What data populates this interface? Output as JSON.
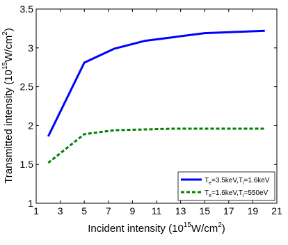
{
  "chart_data": {
    "type": "line",
    "xlabel": {
      "pre": "Incident intensity (10",
      "sup": "15",
      "mid": "W/cm",
      "sup2": "2",
      "post": ")"
    },
    "ylabel": {
      "pre": "Transmitted intensity (10",
      "sup": "15",
      "mid": "W/cm",
      "sup2": "2",
      "post": ")"
    },
    "xlim": [
      1,
      21
    ],
    "ylim": [
      1,
      3.5
    ],
    "xticks": [
      "1",
      "3",
      "5",
      "7",
      "9",
      "11",
      "13",
      "15",
      "17",
      "19",
      "21"
    ],
    "yticks": [
      "1",
      "1.5",
      "2",
      "2.5",
      "3",
      "3.5"
    ],
    "grid": false,
    "legend_position": "bottom-right",
    "series": [
      {
        "legend": {
          "a": "T",
          "a_sub": "e",
          "b": "=3.5keV,T",
          "b_sub": "i",
          "c": "=1.6keV"
        },
        "color": "#0000ff",
        "style": "solid",
        "x": [
          2,
          5,
          7.5,
          10,
          12.5,
          15,
          20
        ],
        "y": [
          1.86,
          2.81,
          2.99,
          3.09,
          3.14,
          3.19,
          3.22
        ]
      },
      {
        "legend": {
          "a": "T",
          "a_sub": "e",
          "b": "=1.6keV,T",
          "b_sub": "i",
          "c": "=550eV"
        },
        "color": "#008000",
        "style": "dashed",
        "x": [
          2,
          5,
          7.5,
          10,
          12.5,
          15,
          20
        ],
        "y": [
          1.52,
          1.89,
          1.94,
          1.95,
          1.96,
          1.96,
          1.96
        ]
      }
    ]
  }
}
